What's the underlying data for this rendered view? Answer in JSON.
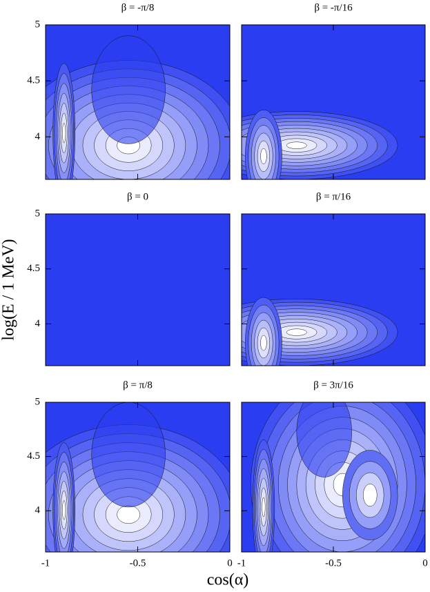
{
  "x_label": "cos(α)",
  "y_label": "log(E / 1 MeV)",
  "chart_data": [
    {
      "type": "contour",
      "title": "β = -π/8",
      "xlim": [
        -1,
        0
      ],
      "ylim": [
        3.62,
        5
      ],
      "xticks": [
        -1,
        -0.5,
        0
      ],
      "yticks": [
        4,
        4.5,
        5
      ]
    },
    {
      "type": "contour",
      "title": "β = -π/16",
      "xlim": [
        -1,
        0
      ],
      "ylim": [
        3.62,
        5
      ],
      "xticks": [
        -1,
        -0.5,
        0
      ],
      "yticks": [
        4,
        4.5,
        5
      ]
    },
    {
      "type": "contour",
      "title": "β = 0",
      "xlim": [
        -1,
        0
      ],
      "ylim": [
        3.62,
        5
      ],
      "xticks": [
        -1,
        -0.5,
        0
      ],
      "yticks": [
        4,
        4.5,
        5
      ]
    },
    {
      "type": "contour",
      "title": "β = π/16",
      "xlim": [
        -1,
        0
      ],
      "ylim": [
        3.62,
        5
      ],
      "xticks": [
        -1,
        -0.5,
        0
      ],
      "yticks": [
        4,
        4.5,
        5
      ]
    },
    {
      "type": "contour",
      "title": "β = π/8",
      "xlim": [
        -1,
        0
      ],
      "ylim": [
        3.62,
        5
      ],
      "xticks": [
        -1,
        -0.5,
        0
      ],
      "yticks": [
        4,
        4.5,
        5
      ]
    },
    {
      "type": "contour",
      "title": "β = 3π/16",
      "xlim": [
        -1,
        0
      ],
      "ylim": [
        3.62,
        5
      ],
      "xticks": [
        -1,
        -0.5,
        0
      ],
      "yticks": [
        4,
        4.5,
        5
      ]
    }
  ]
}
